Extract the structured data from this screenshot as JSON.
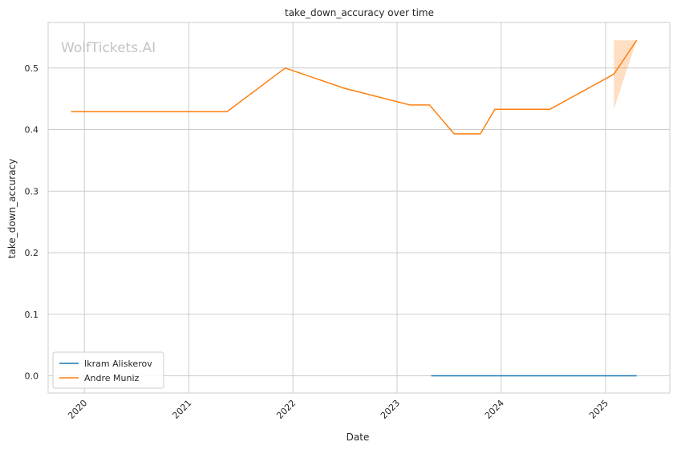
{
  "chart_data": {
    "type": "line",
    "title": "take_down_accuracy over time",
    "xlabel": "Date",
    "ylabel": "take_down_accuracy",
    "watermark": "WolfTickets.AI",
    "x_ticks": [
      "2020",
      "2021",
      "2022",
      "2023",
      "2024",
      "2025"
    ],
    "y_ticks": [
      "0.0",
      "0.1",
      "0.2",
      "0.3",
      "0.4",
      "0.5"
    ],
    "ylim": [
      -0.028,
      0.574
    ],
    "xlim": [
      "2019-08-27",
      "2025-08-14"
    ],
    "grid": true,
    "legend_position": "lower-left",
    "series": [
      {
        "name": "Ikram Aliskerov",
        "color": "#1f77b4",
        "points": [
          {
            "x": "2023-05-01",
            "y": 0.0
          },
          {
            "x": "2025-04-20",
            "y": 0.0
          }
        ]
      },
      {
        "name": "Andre Muniz",
        "color": "#ff7f0e",
        "points": [
          {
            "x": "2019-11-15",
            "y": 0.429
          },
          {
            "x": "2021-05-15",
            "y": 0.429
          },
          {
            "x": "2021-12-05",
            "y": 0.5
          },
          {
            "x": "2022-07-01",
            "y": 0.467
          },
          {
            "x": "2023-02-15",
            "y": 0.44
          },
          {
            "x": "2023-04-25",
            "y": 0.44
          },
          {
            "x": "2023-07-20",
            "y": 0.393
          },
          {
            "x": "2023-10-20",
            "y": 0.393
          },
          {
            "x": "2023-12-10",
            "y": 0.433
          },
          {
            "x": "2024-06-20",
            "y": 0.433
          },
          {
            "x": "2025-01-30",
            "y": 0.49
          },
          {
            "x": "2025-04-20",
            "y": 0.545
          }
        ],
        "band": {
          "x_start": "2025-01-30",
          "x_end": "2025-04-20",
          "lower": 0.433,
          "upper": 0.545,
          "color": "#ff7f0e",
          "opacity": 0.25
        }
      }
    ]
  }
}
